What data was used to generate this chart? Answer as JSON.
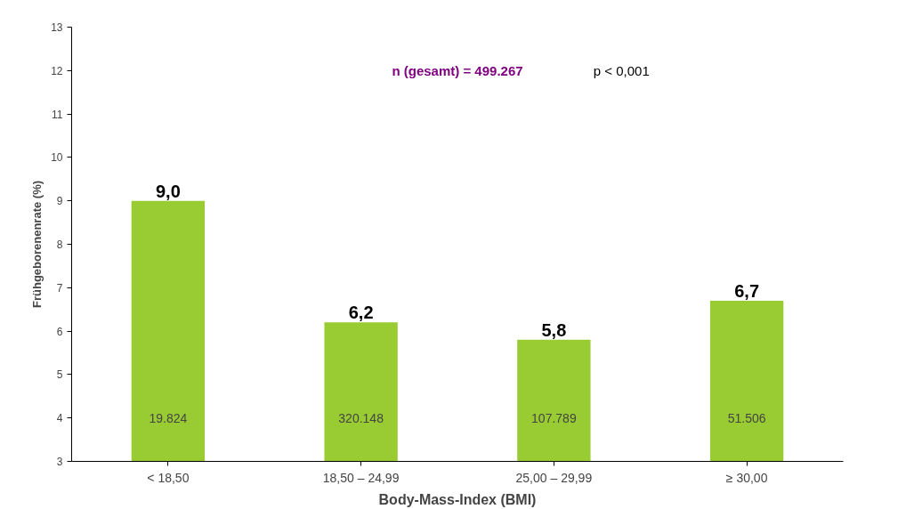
{
  "chart_data": {
    "type": "bar",
    "xlabel": "Body-Mass-Index (BMI)",
    "ylabel": "Frühgeborenenrate (%)",
    "categories": [
      "< 18,50",
      "18,50 – 24,99",
      "25,00 – 29,99",
      "≥ 30,00"
    ],
    "values": [
      9.0,
      6.2,
      5.8,
      6.7
    ],
    "color": "#99cc33",
    "value_labels": [
      "9,0",
      "6,2",
      "5,8",
      "6,7"
    ],
    "ylim": [
      3,
      13
    ],
    "yticks": [
      3,
      4,
      5,
      6,
      7,
      8,
      9,
      10,
      11,
      12,
      13
    ],
    "grid": false,
    "annotations": [
      "19.824",
      "320.148",
      "107.789",
      "51.506",
      "n (gesamt) = 499.267",
      "p < 0,001"
    ]
  }
}
